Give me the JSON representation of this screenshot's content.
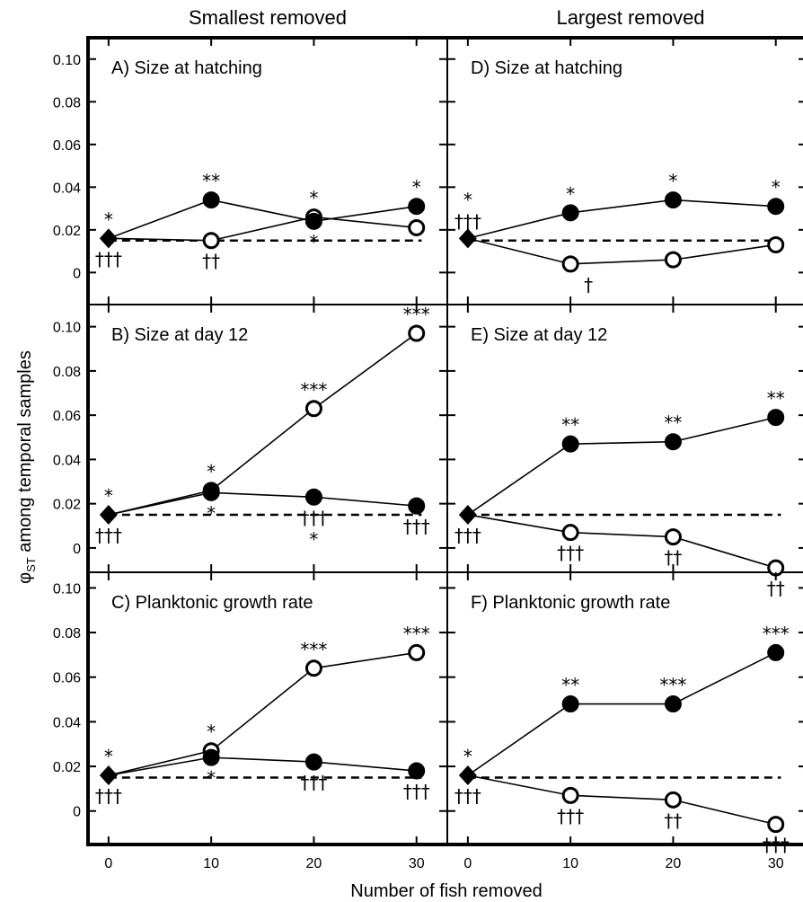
{
  "figure": {
    "columns": [
      "Smallest removed",
      "Largest removed"
    ],
    "xlabel": "Number of fish removed",
    "ylabel_main": "φ",
    "ylabel_sub": "ST",
    "ylabel_rest": " among temporal samples"
  },
  "chart_data": [
    {
      "type": "line",
      "panel": "A",
      "title": "A) Size at hatching",
      "column": "Smallest removed",
      "x": [
        0,
        10,
        20,
        30
      ],
      "xlim": [
        -2,
        33
      ],
      "ylim": [
        -0.015,
        0.11
      ],
      "yticks": [
        "0",
        "0.02",
        "0.04",
        "0.06",
        "0.08",
        "0.10"
      ],
      "baseline": 0.015,
      "series": [
        {
          "marker": "filled",
          "values": [
            0.016,
            0.034,
            0.024,
            0.031
          ]
        },
        {
          "marker": "open",
          "values": [
            0.016,
            0.015,
            0.026,
            0.021
          ]
        }
      ],
      "annotations": [
        {
          "x": 0,
          "side": "above",
          "text": "*"
        },
        {
          "x": 0,
          "side": "below",
          "text": "†††"
        },
        {
          "x": 10,
          "side": "above",
          "text": "**"
        },
        {
          "x": 10,
          "side": "below",
          "text": "††"
        },
        {
          "x": 20,
          "side": "above",
          "text": "*"
        },
        {
          "x": 20,
          "side": "below",
          "text": "*"
        },
        {
          "x": 30,
          "side": "above",
          "text": "*"
        }
      ]
    },
    {
      "type": "line",
      "panel": "B",
      "title": "B) Size at day 12",
      "column": "Smallest removed",
      "x": [
        0,
        10,
        20,
        30
      ],
      "xlim": [
        -2,
        33
      ],
      "ylim": [
        -0.011,
        0.11
      ],
      "yticks": [
        "0",
        "0.02",
        "0.04",
        "0.06",
        "0.08",
        "0.10"
      ],
      "baseline": 0.015,
      "series": [
        {
          "marker": "filled",
          "values": [
            0.015,
            0.025,
            0.023,
            0.019
          ]
        },
        {
          "marker": "open",
          "values": [
            0.015,
            0.026,
            0.063,
            0.097
          ]
        }
      ],
      "annotations": [
        {
          "x": 0,
          "side": "above",
          "text": "*"
        },
        {
          "x": 0,
          "side": "below",
          "text": "†††"
        },
        {
          "x": 10,
          "side": "above",
          "text": "*"
        },
        {
          "x": 10,
          "side": "below",
          "text": "*"
        },
        {
          "x": 20,
          "side": "above",
          "text": "***"
        },
        {
          "x": 20,
          "side": "below",
          "text": "†††"
        },
        {
          "x": 20,
          "side": "below2",
          "text": "*"
        },
        {
          "x": 30,
          "side": "above",
          "text": "***"
        },
        {
          "x": 30,
          "side": "below",
          "text": "†††"
        }
      ]
    },
    {
      "type": "line",
      "panel": "C",
      "title": "C) Planktonic growth rate",
      "column": "Smallest removed",
      "x": [
        0,
        10,
        20,
        30
      ],
      "xlim": [
        -2,
        33
      ],
      "ylim": [
        -0.015,
        0.107
      ],
      "yticks": [
        "0",
        "0.02",
        "0.04",
        "0.06",
        "0.08",
        "0.10"
      ],
      "baseline": 0.015,
      "series": [
        {
          "marker": "filled",
          "values": [
            0.016,
            0.024,
            0.022,
            0.018
          ]
        },
        {
          "marker": "open",
          "values": [
            0.016,
            0.027,
            0.064,
            0.071
          ]
        }
      ],
      "annotations": [
        {
          "x": 0,
          "side": "above",
          "text": "*"
        },
        {
          "x": 0,
          "side": "below",
          "text": "†††"
        },
        {
          "x": 10,
          "side": "above",
          "text": "*"
        },
        {
          "x": 10,
          "side": "below",
          "text": "*"
        },
        {
          "x": 20,
          "side": "above",
          "text": "***"
        },
        {
          "x": 20,
          "side": "below",
          "text": "†††"
        },
        {
          "x": 30,
          "side": "above",
          "text": "***"
        },
        {
          "x": 30,
          "side": "below",
          "text": "†††"
        }
      ]
    },
    {
      "type": "line",
      "panel": "D",
      "title": "D) Size at hatching",
      "column": "Largest removed",
      "x": [
        0,
        10,
        20,
        30
      ],
      "xlim": [
        -2,
        33
      ],
      "ylim": [
        -0.015,
        0.11
      ],
      "yticks": [],
      "baseline": 0.015,
      "series": [
        {
          "marker": "filled",
          "values": [
            0.016,
            0.028,
            0.034,
            0.031
          ]
        },
        {
          "marker": "open",
          "values": [
            0.016,
            0.004,
            0.006,
            0.013
          ]
        }
      ],
      "annotations": [
        {
          "x": 0,
          "side": "above2",
          "text": "*"
        },
        {
          "x": 0,
          "side": "above",
          "text": "†††"
        },
        {
          "x": 10,
          "side": "above",
          "text": "*"
        },
        {
          "x": 10,
          "side": "below",
          "text": "†"
        },
        {
          "x": 20,
          "side": "above",
          "text": "*"
        },
        {
          "x": 30,
          "side": "above",
          "text": "*"
        }
      ]
    },
    {
      "type": "line",
      "panel": "E",
      "title": "E) Size at day 12",
      "column": "Largest removed",
      "x": [
        0,
        10,
        20,
        30
      ],
      "xlim": [
        -2,
        33
      ],
      "ylim": [
        -0.011,
        0.11
      ],
      "yticks": [],
      "baseline": 0.015,
      "series": [
        {
          "marker": "filled",
          "values": [
            0.015,
            0.047,
            0.048,
            0.059
          ]
        },
        {
          "marker": "open",
          "values": [
            0.015,
            0.007,
            0.005,
            -0.009
          ]
        }
      ],
      "annotations": [
        {
          "x": 0,
          "side": "below",
          "text": "†††"
        },
        {
          "x": 10,
          "side": "above",
          "text": "**"
        },
        {
          "x": 10,
          "side": "below",
          "text": "†††"
        },
        {
          "x": 20,
          "side": "above",
          "text": "**"
        },
        {
          "x": 20,
          "side": "below",
          "text": "††"
        },
        {
          "x": 30,
          "side": "above",
          "text": "**"
        },
        {
          "x": 30,
          "side": "below",
          "text": "††"
        }
      ]
    },
    {
      "type": "line",
      "panel": "F",
      "title": "F) Planktonic growth rate",
      "column": "Largest removed",
      "x": [
        0,
        10,
        20,
        30
      ],
      "xlim": [
        -2,
        33
      ],
      "ylim": [
        -0.015,
        0.107
      ],
      "yticks": [],
      "baseline": 0.015,
      "series": [
        {
          "marker": "filled",
          "values": [
            0.016,
            0.048,
            0.048,
            0.071
          ]
        },
        {
          "marker": "open",
          "values": [
            0.016,
            0.007,
            0.005,
            -0.006
          ]
        }
      ],
      "annotations": [
        {
          "x": 0,
          "side": "above",
          "text": "*"
        },
        {
          "x": 0,
          "side": "below",
          "text": "†††"
        },
        {
          "x": 10,
          "side": "above",
          "text": "**"
        },
        {
          "x": 10,
          "side": "below",
          "text": "†††"
        },
        {
          "x": 20,
          "side": "above",
          "text": "***"
        },
        {
          "x": 20,
          "side": "below",
          "text": "††"
        },
        {
          "x": 30,
          "side": "above",
          "text": "***"
        },
        {
          "x": 30,
          "side": "below",
          "text": "†††"
        }
      ]
    }
  ],
  "xticks": [
    "0",
    "10",
    "20",
    "30"
  ]
}
